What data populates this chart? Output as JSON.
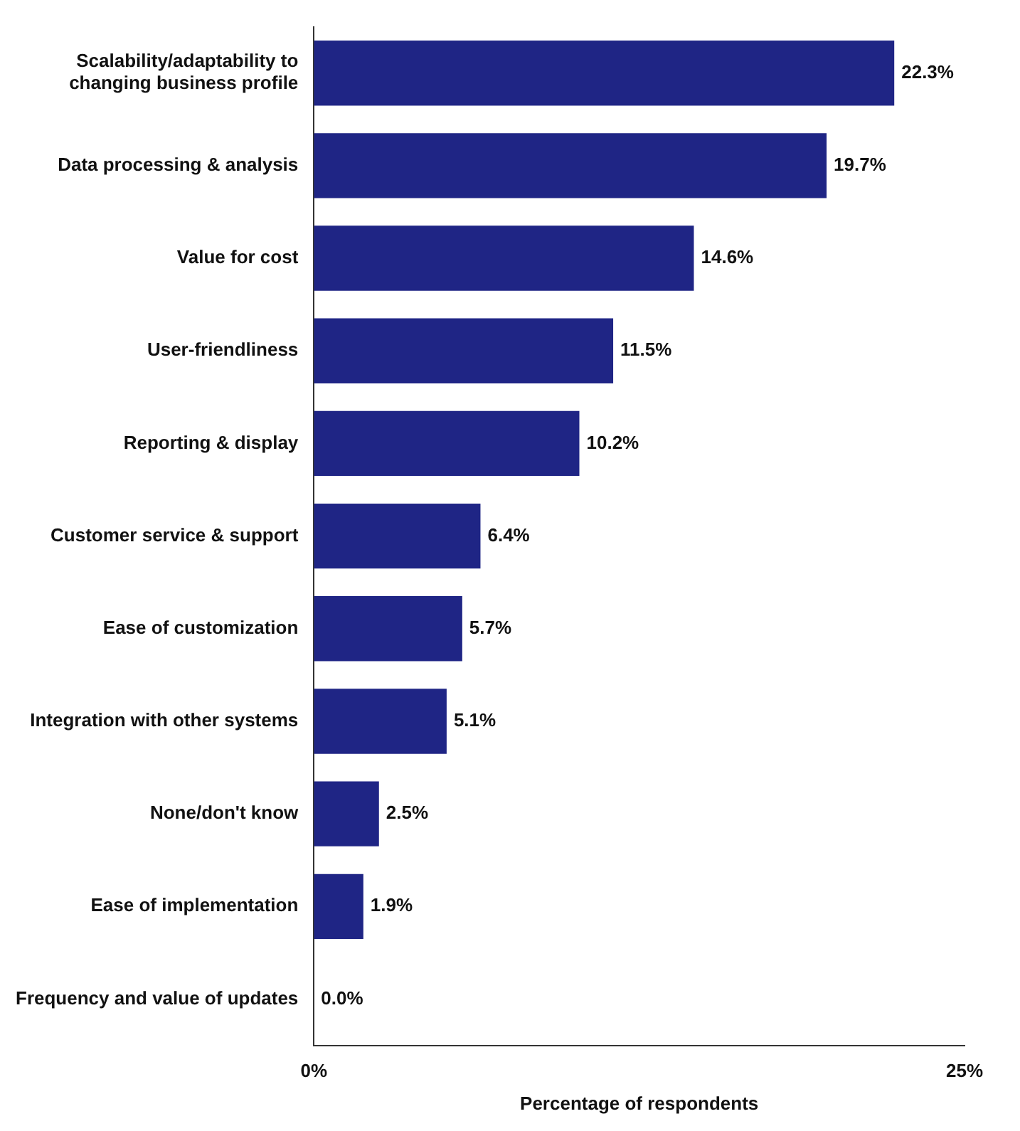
{
  "chart_data": {
    "type": "bar",
    "orientation": "horizontal",
    "xlabel": "Percentage of respondents",
    "categories": [
      "Scalability/adaptability to changing business profile",
      "Data processing & analysis",
      "Value for cost",
      "User-friendliness",
      "Reporting & display",
      "Customer service & support",
      "Ease of customization",
      "Integration with other systems",
      "None/don't know",
      "Ease of implementation",
      "Frequency and value of updates"
    ],
    "values": [
      22.3,
      19.7,
      14.6,
      11.5,
      10.2,
      6.4,
      5.7,
      5.1,
      2.5,
      1.9,
      0.0
    ],
    "value_labels": [
      "22.3%",
      "19.7%",
      "14.6%",
      "11.5%",
      "10.2%",
      "6.4%",
      "5.7%",
      "5.1%",
      "2.5%",
      "1.9%",
      "0.0%"
    ],
    "color": "#1f2585",
    "xlim": [
      0,
      25
    ],
    "xticks": [
      {
        "value": 0,
        "label": "0%"
      },
      {
        "value": 25,
        "label": "25%"
      }
    ],
    "grid": false,
    "legend": false
  }
}
